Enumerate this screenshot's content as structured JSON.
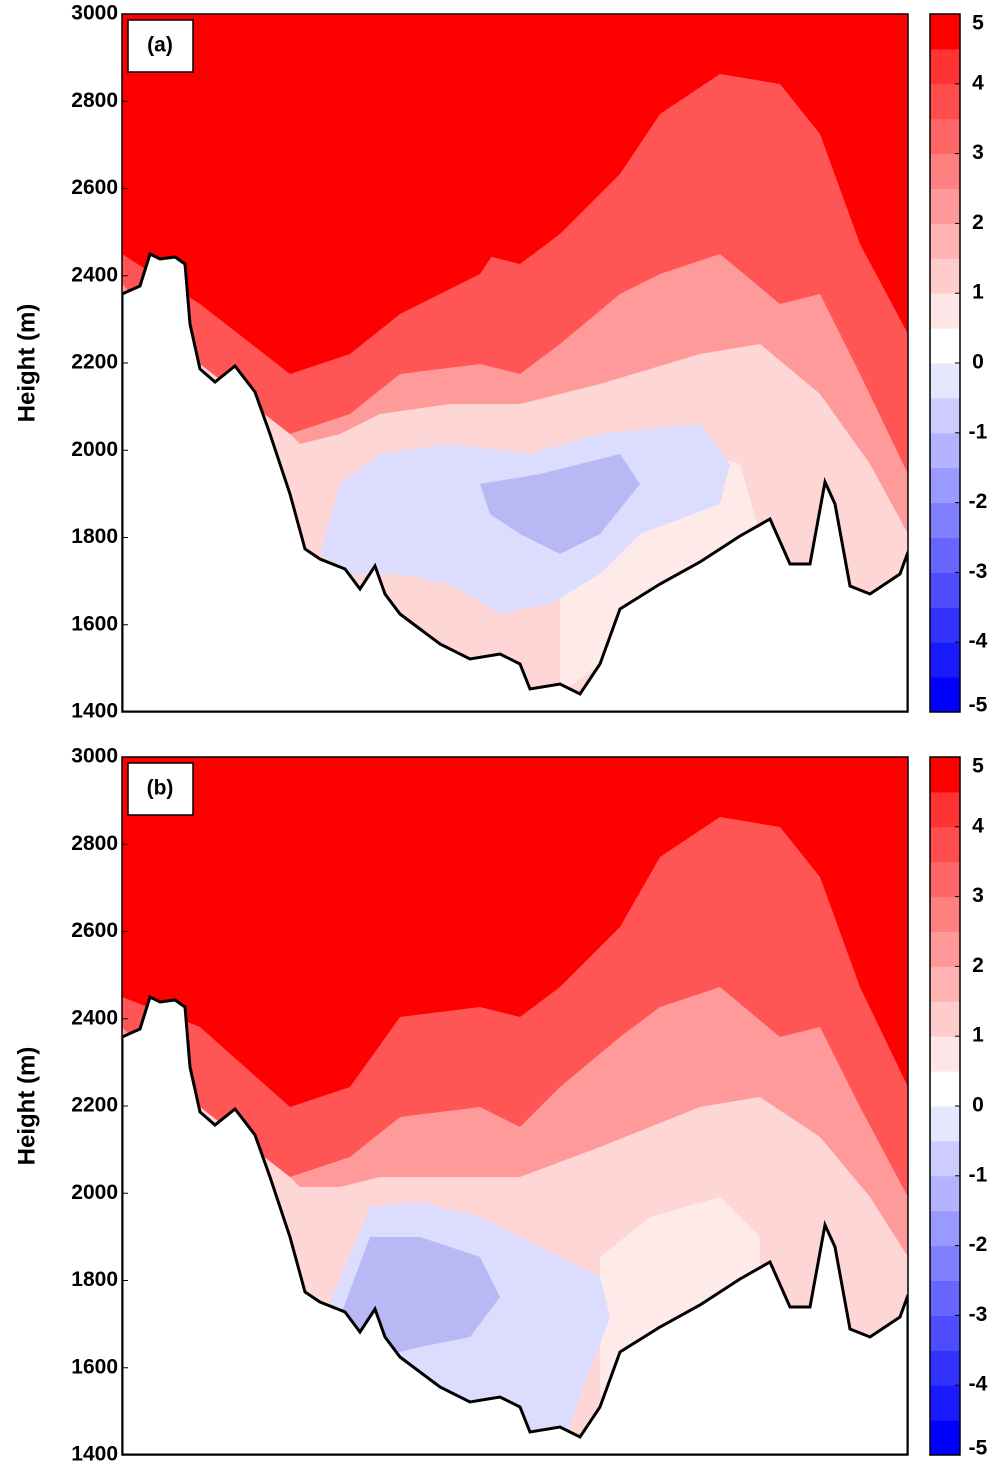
{
  "chart_data": [
    {
      "type": "contour",
      "panel_label": "(a)",
      "y_label": "Height (m)",
      "ylim": [
        1400,
        3000
      ],
      "yticks": [
        1400,
        1600,
        1800,
        2000,
        2200,
        2400,
        2600,
        2800,
        3000
      ],
      "colorbar": {
        "lim": [
          -5,
          5
        ],
        "ticks": [
          -5,
          -4,
          -3,
          -2,
          -1,
          0,
          1,
          2,
          3,
          4,
          5
        ],
        "colors": [
          "#0000ff",
          "#1a1aff",
          "#3333ff",
          "#4d4dff",
          "#6666ff",
          "#8080ff",
          "#9999ff",
          "#b3b3ff",
          "#ccccff",
          "#e6e6ff",
          "#ffffff",
          "#ffe6e6",
          "#ffcccc",
          "#ffb3b3",
          "#ff9999",
          "#ff8080",
          "#ff6666",
          "#ff4d4d",
          "#ff3333",
          "#ff0000"
        ]
      }
    },
    {
      "type": "contour",
      "panel_label": "(b)",
      "y_label": "Height (m)",
      "ylim": [
        1400,
        3000
      ],
      "yticks": [
        1400,
        1600,
        1800,
        2000,
        2200,
        2400,
        2600,
        2800,
        3000
      ],
      "colorbar": {
        "lim": [
          -5,
          5
        ],
        "ticks": [
          -5,
          -4,
          -3,
          -2,
          -1,
          0,
          1,
          2,
          3,
          4,
          5
        ],
        "colors": [
          "#0000ff",
          "#1a1aff",
          "#3333ff",
          "#4d4dff",
          "#6666ff",
          "#8080ff",
          "#9999ff",
          "#b3b3ff",
          "#ccccff",
          "#e6e6ff",
          "#ffffff",
          "#ffe6e6",
          "#ffcccc",
          "#ffb3b3",
          "#ff9999",
          "#ff8080",
          "#ff6666",
          "#ff4d4d",
          "#ff3333",
          "#ff0000"
        ]
      }
    }
  ]
}
